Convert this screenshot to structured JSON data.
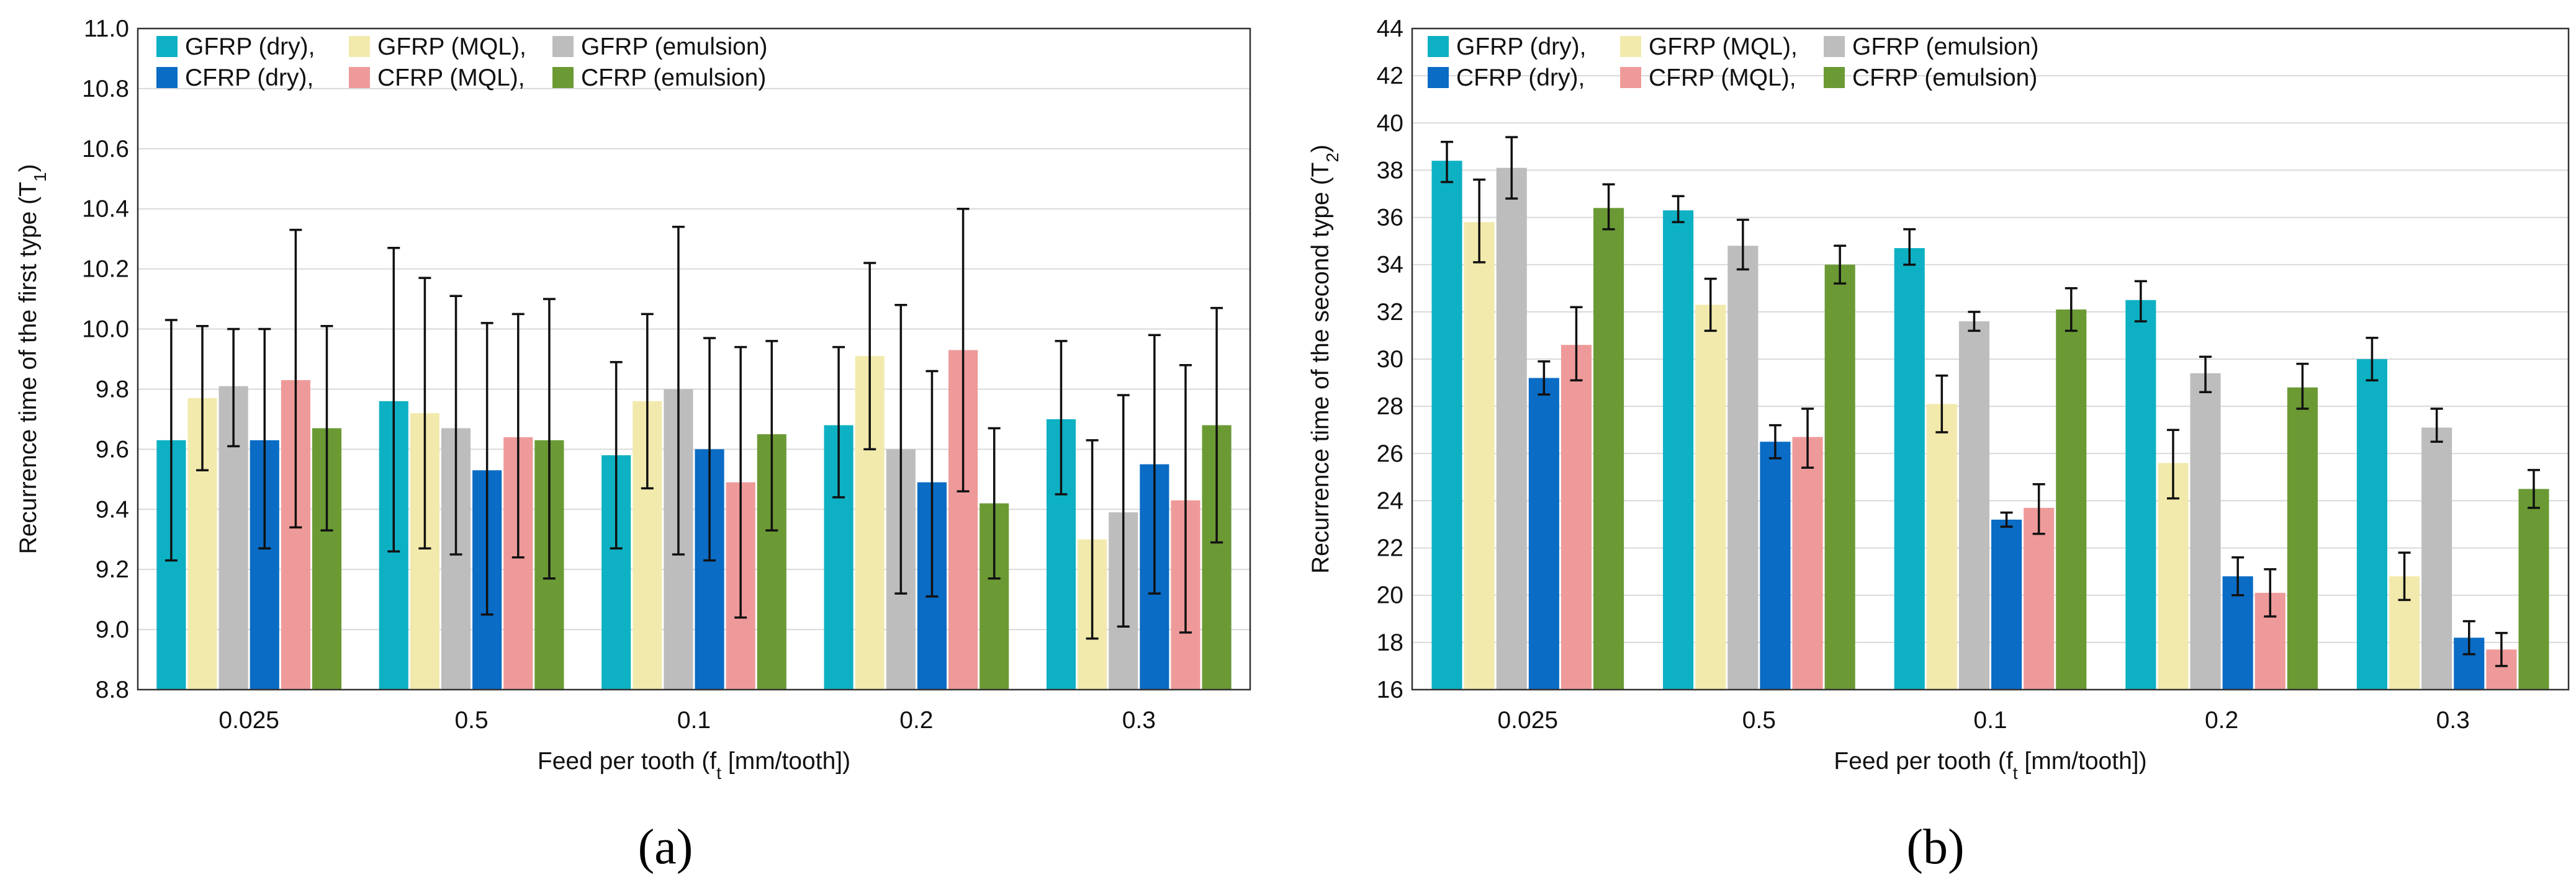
{
  "chart_data": [
    {
      "type": "bar",
      "panel_label": "(a)",
      "xlabel_main": "Feed per tooth (f",
      "xlabel_sub": "t",
      "xlabel_tail": " [mm/tooth])",
      "ylabel_main": "Recurrence time of the first type (T",
      "ylabel_sub": "1",
      "ylabel_tail": ")",
      "ylim": [
        8.8,
        11.0
      ],
      "yticks": [
        "8.8",
        "9.0",
        "9.2",
        "9.4",
        "9.6",
        "9.8",
        "10.0",
        "10.2",
        "10.4",
        "10.6",
        "10.8",
        "11.0"
      ],
      "grid": true,
      "legend_position": "top-left",
      "categories": [
        "0.025",
        "0.5",
        "0.1",
        "0.2",
        "0.3"
      ],
      "series": [
        {
          "name": "GFRP (dry)",
          "legend_label": "GFRP (dry),",
          "values": [
            9.63,
            9.76,
            9.58,
            9.68,
            9.7
          ],
          "err_low": [
            9.23,
            9.26,
            9.27,
            9.44,
            9.45
          ],
          "err_high": [
            10.03,
            10.27,
            9.89,
            9.94,
            9.96
          ]
        },
        {
          "name": "GFRP (MQL)",
          "legend_label": "GFRP (MQL),",
          "values": [
            9.77,
            9.72,
            9.76,
            9.91,
            9.3
          ],
          "err_low": [
            9.53,
            9.27,
            9.47,
            9.6,
            8.97
          ],
          "err_high": [
            10.01,
            10.17,
            10.05,
            10.22,
            9.63
          ]
        },
        {
          "name": "GFRP (emulsion)",
          "legend_label": "GFRP (emulsion)",
          "values": [
            9.81,
            9.67,
            9.8,
            9.6,
            9.39
          ],
          "err_low": [
            9.61,
            9.25,
            9.25,
            9.12,
            9.01
          ],
          "err_high": [
            10.0,
            10.11,
            10.34,
            10.08,
            9.78
          ]
        },
        {
          "name": "CFRP (dry)",
          "legend_label": "CFRP (dry),",
          "values": [
            9.63,
            9.53,
            9.6,
            9.49,
            9.55
          ],
          "err_low": [
            9.27,
            9.05,
            9.23,
            9.11,
            9.12
          ],
          "err_high": [
            10.0,
            10.02,
            9.97,
            9.86,
            9.98
          ]
        },
        {
          "name": "CFRP (MQL)",
          "legend_label": "CFRP (MQL),",
          "values": [
            9.83,
            9.64,
            9.49,
            9.93,
            9.43
          ],
          "err_low": [
            9.34,
            9.24,
            9.04,
            9.46,
            8.99
          ],
          "err_high": [
            10.33,
            10.05,
            9.94,
            10.4,
            9.88
          ]
        },
        {
          "name": "CFRP (emulsion)",
          "legend_label": "CFRP (emulsion)",
          "values": [
            9.67,
            9.63,
            9.65,
            9.42,
            9.68
          ],
          "err_low": [
            9.33,
            9.17,
            9.33,
            9.17,
            9.29
          ],
          "err_high": [
            10.01,
            10.1,
            9.96,
            9.67,
            10.07
          ]
        }
      ]
    },
    {
      "type": "bar",
      "panel_label": "(b)",
      "xlabel_main": "Feed per tooth (f",
      "xlabel_sub": "t",
      "xlabel_tail": " [mm/tooth])",
      "ylabel_main": "Recurrence time of the second type (T",
      "ylabel_sub": "2",
      "ylabel_tail": ")",
      "ylim": [
        16,
        44
      ],
      "yticks": [
        "16",
        "18",
        "20",
        "22",
        "24",
        "26",
        "28",
        "30",
        "32",
        "34",
        "36",
        "38",
        "40",
        "42",
        "44"
      ],
      "grid": true,
      "legend_position": "top-left",
      "categories": [
        "0.025",
        "0.5",
        "0.1",
        "0.2",
        "0.3"
      ],
      "series": [
        {
          "name": "GFRP (dry)",
          "legend_label": "GFRP (dry),",
          "values": [
            38.4,
            36.3,
            34.7,
            32.5,
            30.0
          ],
          "err_low": [
            37.5,
            35.8,
            34.0,
            31.6,
            29.1
          ],
          "err_high": [
            39.2,
            36.9,
            35.5,
            33.3,
            30.9
          ]
        },
        {
          "name": "GFRP (MQL)",
          "legend_label": "GFRP (MQL),",
          "values": [
            35.8,
            32.3,
            28.1,
            25.6,
            20.8
          ],
          "err_low": [
            34.1,
            31.2,
            26.9,
            24.1,
            19.8
          ],
          "err_high": [
            37.6,
            33.4,
            29.3,
            27.0,
            21.8
          ]
        },
        {
          "name": "GFRP (emulsion)",
          "legend_label": "GFRP (emulsion)",
          "values": [
            38.1,
            34.8,
            31.6,
            29.4,
            27.1
          ],
          "err_low": [
            36.8,
            33.8,
            31.2,
            28.6,
            26.5
          ],
          "err_high": [
            39.4,
            35.9,
            32.0,
            30.1,
            27.9
          ]
        },
        {
          "name": "CFRP (dry)",
          "legend_label": "CFRP (dry),",
          "values": [
            29.2,
            26.5,
            23.2,
            20.8,
            18.2
          ],
          "err_low": [
            28.5,
            25.8,
            22.9,
            20.0,
            17.5
          ],
          "err_high": [
            29.9,
            27.2,
            23.5,
            21.6,
            18.9
          ]
        },
        {
          "name": "CFRP (MQL)",
          "legend_label": "CFRP (MQL),",
          "values": [
            30.6,
            26.7,
            23.7,
            20.1,
            17.7
          ],
          "err_low": [
            29.1,
            25.4,
            22.6,
            19.1,
            17.0
          ],
          "err_high": [
            32.2,
            27.9,
            24.7,
            21.1,
            18.4
          ]
        },
        {
          "name": "CFRP (emulsion)",
          "legend_label": "CFRP (emulsion)",
          "values": [
            36.4,
            34.0,
            32.1,
            28.8,
            24.5
          ],
          "err_low": [
            35.5,
            33.2,
            31.2,
            27.9,
            23.7
          ],
          "err_high": [
            37.4,
            34.8,
            33.0,
            29.8,
            25.3
          ]
        }
      ]
    }
  ],
  "colors": {
    "series": [
      "#0eb1c4",
      "#f2eaac",
      "#bdbdbd",
      "#0a6cc5",
      "#ef9a9a",
      "#6b9a35"
    ],
    "grid": "#d9d9d9",
    "frame": "#333333",
    "error_bar": "#111111"
  }
}
